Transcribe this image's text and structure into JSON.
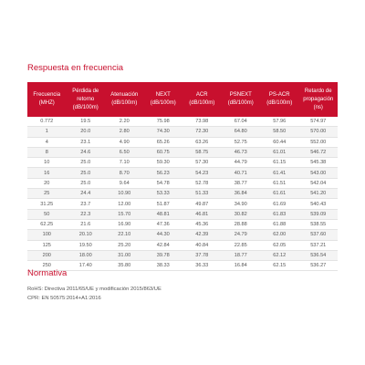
{
  "sections": [
    {
      "title": "Respuesta en frecuencia"
    },
    {
      "title": "Normativa",
      "lines": [
        "RoHS: Directiva 2011/65/UE y modificación 2015/863/UE",
        "CPR: EN 50575:2014+A1:2016"
      ]
    }
  ],
  "table": {
    "header": [
      [
        "Frecuencia",
        "(MHZ)"
      ],
      [
        "Pérdida de retorno",
        "(dB/100m)"
      ],
      [
        "Atenuación",
        "(dB/100m)"
      ],
      [
        "NEXT",
        "(dB/100m)"
      ],
      [
        "ACR",
        "(dB/100m)"
      ],
      [
        "PSNEXT",
        "(dB/100m)"
      ],
      [
        "PS-ACR",
        "(dB/100m)"
      ],
      [
        "Retardo de",
        "propagación",
        "(ns)"
      ]
    ],
    "rows": [
      [
        "0.772",
        "19.5",
        "2.20",
        "75.98",
        "73.98",
        "67.04",
        "57.96",
        "574.97"
      ],
      [
        "1",
        "20.0",
        "2.80",
        "74.30",
        "72.30",
        "64.80",
        "58.50",
        "570.00"
      ],
      [
        "4",
        "23.1",
        "4.90",
        "65.26",
        "63.26",
        "52.75",
        "60.44",
        "552.00"
      ],
      [
        "8",
        "24.6",
        "6.50",
        "60.75",
        "58.75",
        "46.73",
        "61.01",
        "546.72"
      ],
      [
        "10",
        "25.0",
        "7.10",
        "59.30",
        "57.30",
        "44.79",
        "61.15",
        "545.38"
      ],
      [
        "16",
        "25.0",
        "8.70",
        "56.23",
        "54.23",
        "40.71",
        "61.41",
        "543.00"
      ],
      [
        "20",
        "25.0",
        "9.64",
        "54.78",
        "52.78",
        "38.77",
        "61.51",
        "542.04"
      ],
      [
        "25",
        "24.4",
        "10.90",
        "53.33",
        "51.33",
        "36.84",
        "61.61",
        "541.20"
      ],
      [
        "31.25",
        "23.7",
        "12.00",
        "51.87",
        "49.87",
        "34.90",
        "61.69",
        "540.43"
      ],
      [
        "50",
        "22.3",
        "15.70",
        "48.81",
        "46.81",
        "30.82",
        "61.83",
        "539.09"
      ],
      [
        "62.25",
        "21.6",
        "16.90",
        "47.36",
        "45.36",
        "28.88",
        "61.88",
        "538.55"
      ],
      [
        "100",
        "20.10",
        "22.10",
        "44.30",
        "42.39",
        "24.79",
        "62.00",
        "537.60"
      ],
      [
        "125",
        "19.50",
        "25.20",
        "42.84",
        "40.84",
        "22.85",
        "62.05",
        "537.21"
      ],
      [
        "200",
        "18.00",
        "31.00",
        "39.78",
        "37.78",
        "18.77",
        "62.12",
        "536.54"
      ],
      [
        "250",
        "17.40",
        "35.80",
        "38.33",
        "36.33",
        "16.84",
        "62.15",
        "536.27"
      ]
    ]
  }
}
